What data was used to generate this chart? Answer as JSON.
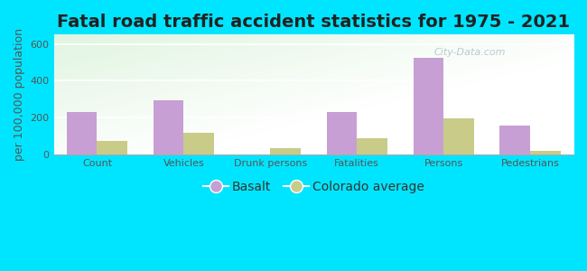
{
  "title": "Fatal road traffic accident statistics for 1975 - 2021",
  "ylabel": "per 100,000 population",
  "categories": [
    "Count",
    "Vehicles",
    "Drunk persons",
    "Fatalities",
    "Persons",
    "Pedestrians"
  ],
  "basalt_values": [
    228,
    295,
    0,
    228,
    525,
    155
  ],
  "colorado_values": [
    75,
    115,
    32,
    88,
    198,
    18
  ],
  "basalt_color": "#c89fd4",
  "colorado_color": "#c8cc88",
  "ylim": [
    0,
    650
  ],
  "yticks": [
    0,
    200,
    400,
    600
  ],
  "bar_width": 0.35,
  "outer_background": "#00e5ff",
  "title_fontsize": 14,
  "label_fontsize": 9,
  "tick_fontsize": 8,
  "legend_labels": [
    "Basalt",
    "Colorado average"
  ],
  "watermark": "City-Data.com"
}
